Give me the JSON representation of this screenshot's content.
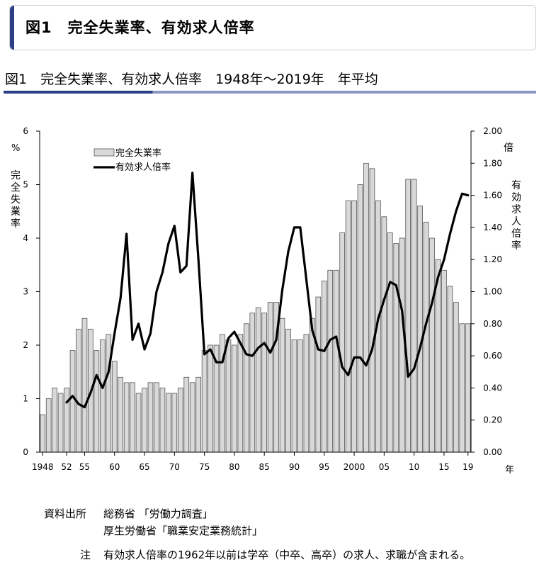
{
  "header": {
    "title": "図1　完全失業率、有効求人倍率"
  },
  "subtitle": "図1　完全失業率、有効求人倍率　1948年～2019年　年平均",
  "chart_data": {
    "type": "bar",
    "series": [
      {
        "name": "完全失業率",
        "kind": "bar",
        "axis": "left",
        "x": [
          1948,
          1949,
          1950,
          1951,
          1952,
          1953,
          1954,
          1955,
          1956,
          1957,
          1958,
          1959,
          1960,
          1961,
          1962,
          1963,
          1964,
          1965,
          1966,
          1967,
          1968,
          1969,
          1970,
          1971,
          1972,
          1973,
          1974,
          1975,
          1976,
          1977,
          1978,
          1979,
          1980,
          1981,
          1982,
          1983,
          1984,
          1985,
          1986,
          1987,
          1988,
          1989,
          1990,
          1991,
          1992,
          1993,
          1994,
          1995,
          1996,
          1997,
          1998,
          1999,
          2000,
          2001,
          2002,
          2003,
          2004,
          2005,
          2006,
          2007,
          2008,
          2009,
          2010,
          2011,
          2012,
          2013,
          2014,
          2015,
          2016,
          2017,
          2018,
          2019
        ],
        "values": [
          0.7,
          1.0,
          1.2,
          1.1,
          1.2,
          1.9,
          2.3,
          2.5,
          2.3,
          1.9,
          2.1,
          2.2,
          1.7,
          1.4,
          1.3,
          1.3,
          1.1,
          1.2,
          1.3,
          1.3,
          1.2,
          1.1,
          1.1,
          1.2,
          1.4,
          1.3,
          1.4,
          1.9,
          2.0,
          2.0,
          2.2,
          2.1,
          2.0,
          2.2,
          2.4,
          2.6,
          2.7,
          2.6,
          2.8,
          2.8,
          2.5,
          2.3,
          2.1,
          2.1,
          2.2,
          2.5,
          2.9,
          3.2,
          3.4,
          3.4,
          4.1,
          4.7,
          4.7,
          5.0,
          5.4,
          5.3,
          4.7,
          4.4,
          4.1,
          3.9,
          4.0,
          5.1,
          5.1,
          4.6,
          4.3,
          4.0,
          3.6,
          3.4,
          3.1,
          2.8,
          2.4,
          2.4
        ]
      },
      {
        "name": "有効求人倍率",
        "kind": "line",
        "axis": "right",
        "x": [
          1952,
          1953,
          1954,
          1955,
          1956,
          1957,
          1958,
          1959,
          1960,
          1961,
          1962,
          1963,
          1964,
          1965,
          1966,
          1967,
          1968,
          1969,
          1970,
          1971,
          1972,
          1973,
          1974,
          1975,
          1976,
          1977,
          1978,
          1979,
          1980,
          1981,
          1982,
          1983,
          1984,
          1985,
          1986,
          1987,
          1988,
          1989,
          1990,
          1991,
          1992,
          1993,
          1994,
          1995,
          1996,
          1997,
          1998,
          1999,
          2000,
          2001,
          2002,
          2003,
          2004,
          2005,
          2006,
          2007,
          2008,
          2009,
          2010,
          2011,
          2012,
          2013,
          2014,
          2015,
          2016,
          2017,
          2018,
          2019
        ],
        "values": [
          0.31,
          0.35,
          0.3,
          0.28,
          0.37,
          0.48,
          0.4,
          0.5,
          0.74,
          0.96,
          1.36,
          0.7,
          0.8,
          0.64,
          0.74,
          1.0,
          1.12,
          1.3,
          1.41,
          1.12,
          1.16,
          1.74,
          1.2,
          0.61,
          0.64,
          0.56,
          0.56,
          0.71,
          0.75,
          0.68,
          0.61,
          0.6,
          0.65,
          0.68,
          0.62,
          0.7,
          1.01,
          1.25,
          1.4,
          1.4,
          1.08,
          0.76,
          0.64,
          0.63,
          0.7,
          0.72,
          0.53,
          0.48,
          0.59,
          0.59,
          0.54,
          0.64,
          0.83,
          0.95,
          1.06,
          1.04,
          0.88,
          0.47,
          0.52,
          0.65,
          0.8,
          0.93,
          1.09,
          1.2,
          1.36,
          1.5,
          1.61,
          1.6
        ]
      }
    ],
    "ylim_left": [
      0,
      6
    ],
    "ylim_right": [
      0,
      2.0
    ],
    "xlim": [
      1948,
      2019
    ],
    "left_ticks": [
      "0",
      "1",
      "2",
      "3",
      "4",
      "5",
      "6"
    ],
    "right_ticks": [
      "0.00",
      "0.20",
      "0.40",
      "0.60",
      "0.80",
      "1.00",
      "1.20",
      "1.40",
      "1.60",
      "1.80",
      "2.00"
    ],
    "x_ticks": [
      {
        "year": 1948,
        "label": "1948"
      },
      {
        "year": 1952,
        "label": "52"
      },
      {
        "year": 1955,
        "label": "55"
      },
      {
        "year": 1960,
        "label": "60"
      },
      {
        "year": 1965,
        "label": "65"
      },
      {
        "year": 1970,
        "label": "70"
      },
      {
        "year": 1975,
        "label": "75"
      },
      {
        "year": 1980,
        "label": "80"
      },
      {
        "year": 1985,
        "label": "85"
      },
      {
        "year": 1990,
        "label": "90"
      },
      {
        "year": 1995,
        "label": "95"
      },
      {
        "year": 2000,
        "label": "2000"
      },
      {
        "year": 2005,
        "label": "05"
      },
      {
        "year": 2010,
        "label": "10"
      },
      {
        "year": 2015,
        "label": "15"
      },
      {
        "year": 2019,
        "label": "19"
      }
    ],
    "left_unit": "%",
    "left_label": "完全失業率",
    "right_unit": "倍",
    "right_label": "有効求人倍率",
    "x_unit": "年",
    "legend": {
      "bar": "完全失業率",
      "line": "有効求人倍率"
    },
    "legend_placement": "top-left",
    "grid": false,
    "colors": {
      "bar_fill": "#d9d9d9",
      "bar_stroke": "#555555",
      "line": "#000000"
    }
  },
  "footer": {
    "source_label": "資料出所",
    "source_1": "総務省 「労働力調査」",
    "source_2": "厚生労働省「職業安定業務統計」",
    "note_label": "注",
    "note": "有効求人倍率の1962年以前は学卒（中卒、高卒）の求人、求職が含まれる。"
  }
}
